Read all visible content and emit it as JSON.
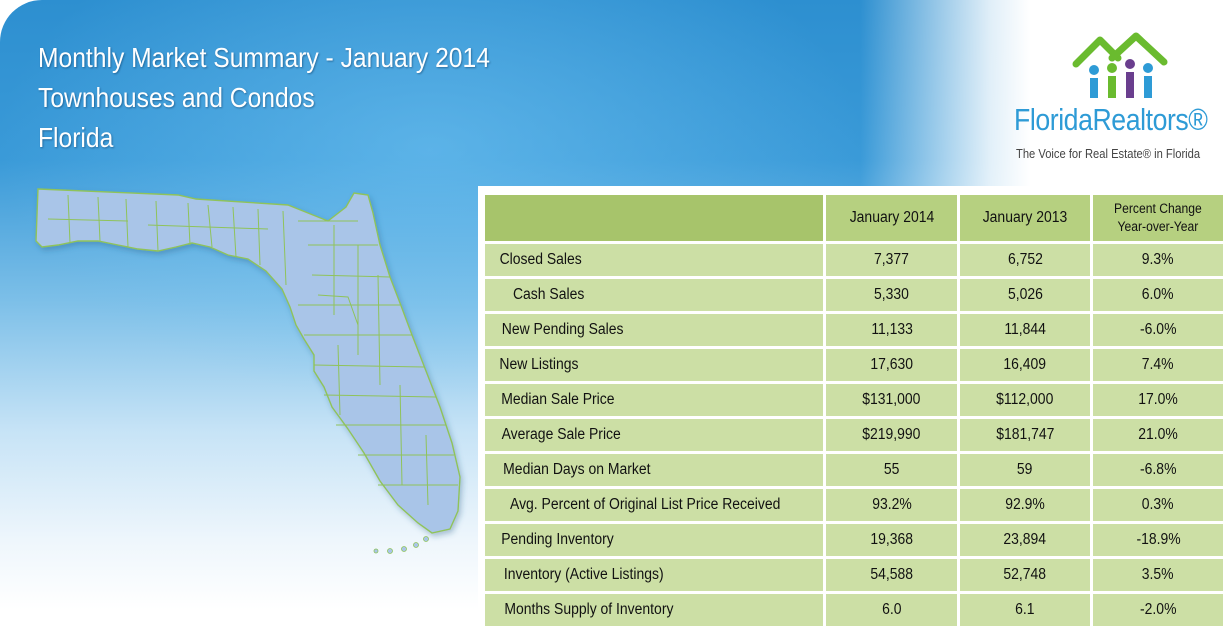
{
  "header": {
    "title_line1": "Monthly Market Summary - January 2014",
    "title_line2": "Townhouses and Condos",
    "title_line3": "Florida"
  },
  "logo": {
    "name": "FloridaRealtors®",
    "tagline": "The Voice for Real Estate® in Florida",
    "icon": "houses-people-icon",
    "colors": {
      "green": "#6abb2f",
      "blue": "#2e9bd6",
      "purple": "#6a3e8e"
    }
  },
  "map": {
    "icon": "florida-county-map"
  },
  "table": {
    "columns": [
      "January 2014",
      "January 2013",
      "Percent Change Year-over-Year"
    ],
    "rows": [
      {
        "label": "Closed Sales",
        "jan2014": "7,377",
        "jan2013": "6,752",
        "change": "9.3%"
      },
      {
        "label": "Cash Sales",
        "jan2014": "5,330",
        "jan2013": "5,026",
        "change": "6.0%"
      },
      {
        "label": "New Pending Sales",
        "jan2014": "11,133",
        "jan2013": "11,844",
        "change": "-6.0%"
      },
      {
        "label": "New Listings",
        "jan2014": "17,630",
        "jan2013": "16,409",
        "change": "7.4%"
      },
      {
        "label": "Median Sale Price",
        "jan2014": "$131,000",
        "jan2013": "$112,000",
        "change": "17.0%"
      },
      {
        "label": "Average Sale Price",
        "jan2014": "$219,990",
        "jan2013": "$181,747",
        "change": "21.0%"
      },
      {
        "label": "Median Days on Market",
        "jan2014": "55",
        "jan2013": "59",
        "change": "-6.8%"
      },
      {
        "label": "Avg. Percent of Original List Price Received",
        "jan2014": "93.2%",
        "jan2013": "92.9%",
        "change": "0.3%"
      },
      {
        "label": "Pending Inventory",
        "jan2014": "19,368",
        "jan2013": "23,894",
        "change": "-18.9%"
      },
      {
        "label": "Inventory (Active Listings)",
        "jan2014": "54,588",
        "jan2013": "52,748",
        "change": "3.5%"
      },
      {
        "label": "Months Supply of Inventory",
        "jan2014": "6.0",
        "jan2013": "6.1",
        "change": "-2.0%"
      }
    ]
  },
  "colors": {
    "header_cell": "#b6d080",
    "label_cell": "#ccdfa5",
    "banner_blue": "#2d8fd0"
  }
}
